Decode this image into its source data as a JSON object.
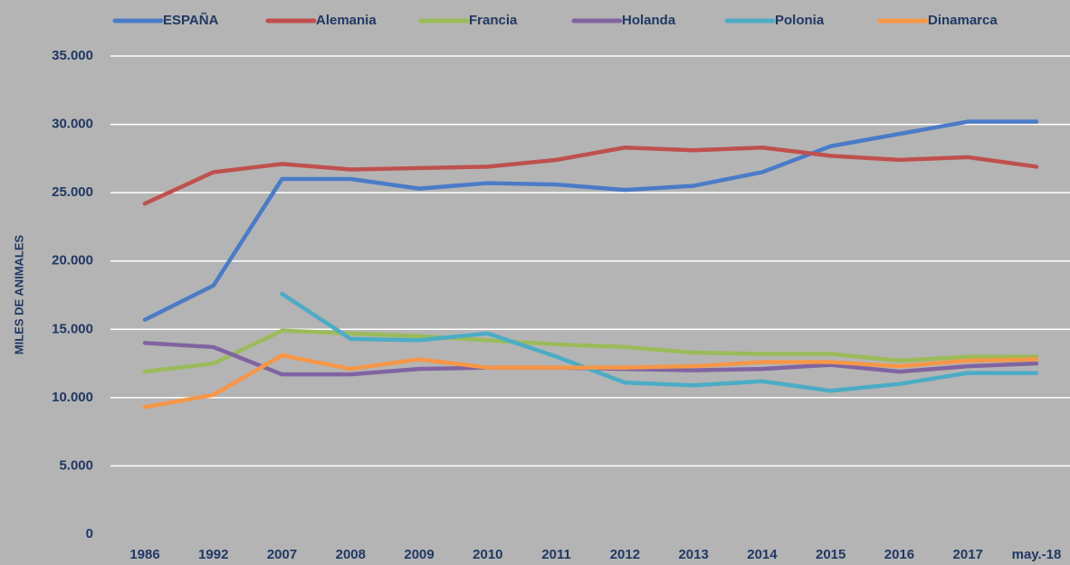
{
  "chart_data": {
    "type": "line",
    "y_label": "MILES DE ANIMALES",
    "categories": [
      "1986",
      "1992",
      "2007",
      "2008",
      "2009",
      "2010",
      "2011",
      "2012",
      "2013",
      "2014",
      "2015",
      "2016",
      "2017",
      "may.-18"
    ],
    "series": [
      {
        "name": "ESPAÑA",
        "color": "#4a7bc8",
        "values": [
          15700,
          18200,
          26000,
          26000,
          25300,
          25700,
          25600,
          25200,
          25500,
          26500,
          28400,
          29300,
          30200,
          30200
        ]
      },
      {
        "name": "Alemania",
        "color": "#c0504d",
        "values": [
          24200,
          26500,
          27100,
          26700,
          26800,
          26900,
          27400,
          28300,
          28100,
          28300,
          27700,
          27400,
          27600,
          26900
        ]
      },
      {
        "name": "Francia",
        "color": "#9bbb59",
        "values": [
          11900,
          12500,
          14900,
          14700,
          14500,
          14200,
          13900,
          13700,
          13300,
          13200,
          13200,
          12700,
          13000,
          13000
        ]
      },
      {
        "name": "Holanda",
        "color": "#8064a2",
        "values": [
          14000,
          13700,
          11700,
          11700,
          12100,
          12200,
          12200,
          12100,
          12000,
          12100,
          12400,
          11900,
          12300,
          12500
        ]
      },
      {
        "name": "Polonia",
        "color": "#4bacc6",
        "values": [
          null,
          null,
          17600,
          14300,
          14200,
          14700,
          13000,
          11100,
          10900,
          11200,
          10500,
          11000,
          11800,
          11800
        ]
      },
      {
        "name": "Dinamarca",
        "color": "#f79646",
        "values": [
          9300,
          10200,
          13100,
          12100,
          12800,
          12200,
          12200,
          12200,
          12300,
          12600,
          12600,
          12300,
          12700,
          12800
        ]
      }
    ],
    "ylim": [
      0,
      35000
    ],
    "yticks": [
      0,
      {
        "value": 5000,
        "label": "5.000"
      },
      {
        "value": 10000,
        "label": "10.000"
      },
      {
        "value": 15000,
        "label": "15.000"
      },
      {
        "value": 20000,
        "label": "20.000"
      },
      {
        "value": 25000,
        "label": "25.000"
      },
      {
        "value": 30000,
        "label": "30.000"
      },
      {
        "value": 35000,
        "label": "35.000"
      }
    ],
    "grid": true
  }
}
